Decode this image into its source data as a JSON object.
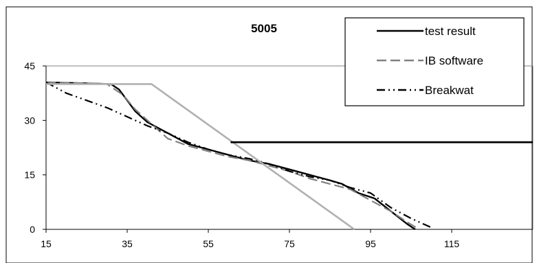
{
  "chart_data": {
    "type": "line",
    "title": "5005",
    "xlim": [
      15,
      135
    ],
    "ylim": [
      0,
      45
    ],
    "x_ticks": [
      15,
      35,
      55,
      75,
      95,
      115
    ],
    "y_ticks": [
      0,
      15,
      30,
      45
    ],
    "legend_position": "top-right",
    "series": [
      {
        "name": "test result",
        "color": "#000000",
        "dash": "solid",
        "x": [
          15,
          31,
          33,
          35,
          37,
          40,
          45,
          50,
          55,
          60,
          65,
          70,
          75,
          80,
          85,
          88,
          92,
          96,
          100,
          104,
          106
        ],
        "y": [
          40.5,
          40,
          38.5,
          35.5,
          32.5,
          29.5,
          26.5,
          23.5,
          22,
          20.5,
          19,
          18,
          16.5,
          15,
          13.5,
          12.5,
          10,
          8.5,
          5,
          1.5,
          0
        ]
      },
      {
        "name": "IB software",
        "color": "#808080",
        "dash": "long-dash",
        "x": [
          15,
          30,
          34,
          37,
          40,
          45,
          50,
          55,
          60,
          65,
          70,
          75,
          80,
          85,
          90,
          95,
          100,
          104,
          107
        ],
        "y": [
          40.5,
          40,
          37,
          33,
          30,
          25,
          23,
          21.5,
          20,
          19,
          17.5,
          16,
          14,
          12.5,
          11,
          8,
          5,
          2,
          0
        ]
      },
      {
        "name": "Breakwat",
        "color": "#000000",
        "dash": "dash-dot",
        "x": [
          15,
          20,
          25,
          30,
          35,
          40,
          45,
          50,
          55,
          60,
          65,
          70,
          75,
          80,
          85,
          90,
          95,
          100,
          105,
          110
        ],
        "y": [
          40.5,
          37.5,
          35.5,
          33.5,
          31,
          28.5,
          26.5,
          24,
          22,
          20.5,
          19.5,
          18,
          16,
          14.5,
          13.5,
          11.5,
          10,
          6,
          3,
          0.5
        ]
      },
      {
        "color": "#b0b0b0",
        "dash": "solid",
        "x": [
          15,
          41,
          91
        ],
        "y": [
          40,
          40,
          0
        ]
      },
      {
        "color": "#000000",
        "dash": "solid",
        "x": [
          60.5,
          135
        ],
        "y": [
          24,
          24
        ]
      }
    ]
  }
}
